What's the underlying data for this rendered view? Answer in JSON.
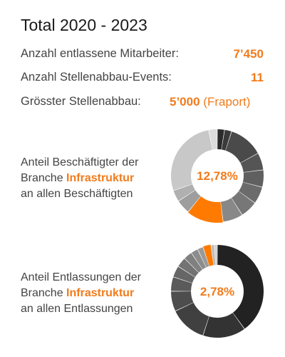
{
  "header": {
    "title": "Total 2020 - 2023"
  },
  "stats": [
    {
      "label": "Anzahl entlassene Mitarbeiter:",
      "value": "7’450",
      "suffix": ""
    },
    {
      "label": "Anzahl Stellenabbau-Events:",
      "value": "11",
      "suffix": ""
    },
    {
      "label": "Grösster Stellenabbau:",
      "value": "5’000",
      "suffix": "(Fraport)"
    }
  ],
  "chart_data": [
    {
      "type": "pie",
      "style": "donut",
      "center_label": "12,78%",
      "caption": {
        "line1": "Anteil Beschäftigter der",
        "line2_prefix": "Branche",
        "highlight": "Infrastruktur",
        "line3": "an allen Beschäftigten"
      },
      "highlight_color": "#ff7a00",
      "slices": [
        {
          "value": 2.5,
          "color": "#2b2b2b"
        },
        {
          "value": 2.5,
          "color": "#3a3a3a"
        },
        {
          "value": 12,
          "color": "#4a4a4a"
        },
        {
          "value": 6,
          "color": "#555555"
        },
        {
          "value": 6,
          "color": "#606060"
        },
        {
          "value": 6,
          "color": "#6b6b6b"
        },
        {
          "value": 6,
          "color": "#777777"
        },
        {
          "value": 7,
          "color": "#888888"
        },
        {
          "value": 12.78,
          "color": "#ff7a00",
          "highlight": true
        },
        {
          "value": 5,
          "color": "#9e9e9e"
        },
        {
          "value": 4,
          "color": "#b0b0b0"
        },
        {
          "value": 27.22,
          "color": "#c8c8c8"
        },
        {
          "value": 3,
          "color": "#dcdcdc"
        }
      ]
    },
    {
      "type": "pie",
      "style": "donut",
      "center_label": "2,78%",
      "caption": {
        "line1": "Anteil Entlassungen der",
        "line2_prefix": "Branche",
        "highlight": "Infrastruktur",
        "line3": "an allen Entlassungen"
      },
      "highlight_color": "#ff7a00",
      "slices": [
        {
          "value": 40,
          "color": "#222222"
        },
        {
          "value": 15,
          "color": "#333333"
        },
        {
          "value": 13,
          "color": "#404040"
        },
        {
          "value": 7,
          "color": "#4d4d4d"
        },
        {
          "value": 5,
          "color": "#5a5a5a"
        },
        {
          "value": 4,
          "color": "#666666"
        },
        {
          "value": 3.5,
          "color": "#737373"
        },
        {
          "value": 3,
          "color": "#808080"
        },
        {
          "value": 2.5,
          "color": "#8c8c8c"
        },
        {
          "value": 2,
          "color": "#999999"
        },
        {
          "value": 2.78,
          "color": "#ff7a00",
          "highlight": true
        },
        {
          "value": 1.2,
          "color": "#bdbdbd"
        },
        {
          "value": 1,
          "color": "#cfcfcf"
        }
      ]
    }
  ]
}
